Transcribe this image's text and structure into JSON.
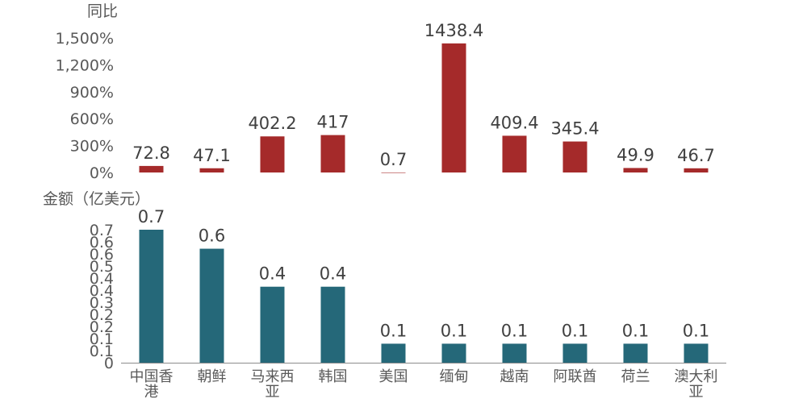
{
  "chart_data": [
    {
      "type": "bar",
      "ylabel": "同比",
      "categories": [
        "中国香港",
        "朝鲜",
        "马来西亚",
        "韩国",
        "美国",
        "缅甸",
        "越南",
        "阿联酋",
        "荷兰",
        "澳大利亚"
      ],
      "values": [
        72.8,
        47.1,
        402.2,
        417,
        0.7,
        1438.4,
        409.4,
        345.4,
        49.9,
        46.7
      ],
      "data_labels": [
        "72.8",
        "47.1",
        "402.2",
        "417",
        "0.7",
        "1438.4",
        "409.4",
        "345.4",
        "49.9",
        "46.7"
      ],
      "yticks": [
        "0%",
        "300%",
        "600%",
        "900%",
        "1,200%",
        "1,500%"
      ],
      "ylim": [
        0,
        1500
      ],
      "color": "#a52a2a",
      "grid": false
    },
    {
      "type": "bar",
      "ylabel": "金额（亿美元）",
      "categories": [
        "中国香港",
        "朝鲜",
        "马来西亚",
        "韩国",
        "美国",
        "缅甸",
        "越南",
        "阿联酋",
        "荷兰",
        "澳大利亚"
      ],
      "category_lines": [
        [
          "中国香",
          "港"
        ],
        [
          "朝鲜"
        ],
        [
          "马来西",
          "亚"
        ],
        [
          "韩国"
        ],
        [
          "美国"
        ],
        [
          "缅甸"
        ],
        [
          "越南"
        ],
        [
          "阿联酋"
        ],
        [
          "荷兰"
        ],
        [
          "澳大利",
          "亚"
        ]
      ],
      "values": [
        0.7,
        0.6,
        0.4,
        0.4,
        0.1,
        0.1,
        0.1,
        0.1,
        0.1,
        0.1
      ],
      "data_labels": [
        "0.7",
        "0.6",
        "0.4",
        "0.4",
        "0.1",
        "0.1",
        "0.1",
        "0.1",
        "0.1",
        "0.1"
      ],
      "yticks": [
        "0",
        "0.1",
        "0.1",
        "0.2",
        "0.2",
        "0.3",
        "0.4",
        "0.4",
        "0.5",
        "0.6",
        "0.6",
        "0.7"
      ],
      "ylim": [
        0,
        0.7
      ],
      "color": "#256879",
      "grid": false
    }
  ]
}
